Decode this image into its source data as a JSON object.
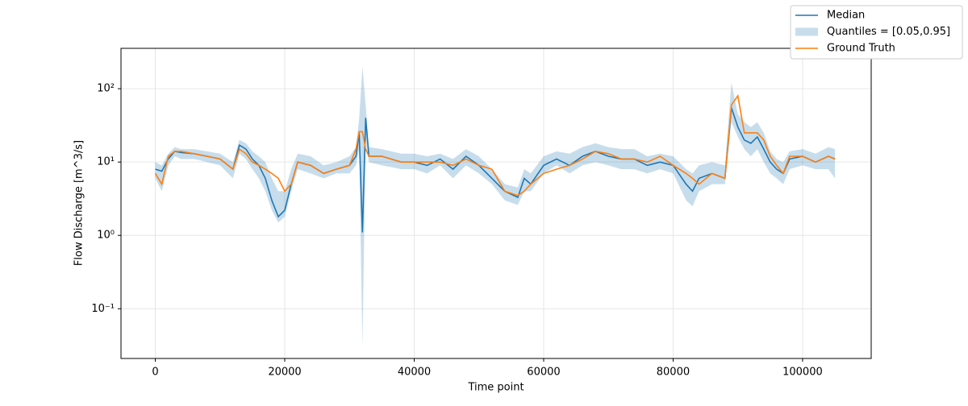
{
  "chart_data": {
    "type": "line",
    "xlabel": "Time point",
    "ylabel": "Flow Discharge [m^3/s]",
    "x": [
      0,
      1000,
      2000,
      3000,
      4000,
      6000,
      8000,
      10000,
      12000,
      13000,
      14000,
      15000,
      16000,
      17000,
      18000,
      19000,
      20000,
      21000,
      22000,
      24000,
      26000,
      28000,
      30000,
      31000,
      31500,
      32000,
      32500,
      33000,
      35000,
      38000,
      40000,
      42000,
      44000,
      46000,
      48000,
      50000,
      52000,
      54000,
      56000,
      57000,
      58000,
      60000,
      62000,
      64000,
      66000,
      68000,
      70000,
      72000,
      74000,
      76000,
      78000,
      80000,
      82000,
      83000,
      84000,
      86000,
      88000,
      89000,
      90000,
      91000,
      92000,
      93000,
      94000,
      95000,
      96000,
      97000,
      98000,
      100000,
      102000,
      104000,
      105000
    ],
    "series": [
      {
        "name": "Median",
        "color": "#1f77b4",
        "values": [
          8,
          7.5,
          11,
          14,
          13.5,
          13,
          12,
          11,
          8,
          17,
          15,
          11,
          9,
          6,
          3,
          1.8,
          2.2,
          5,
          10,
          9,
          7,
          8,
          9,
          12,
          25,
          1.1,
          40,
          12,
          12,
          10,
          10,
          9,
          11,
          8,
          12,
          9,
          6,
          4,
          3.3,
          6,
          5,
          9,
          11,
          9,
          12,
          14,
          12,
          11,
          11,
          9,
          10,
          9,
          5,
          4,
          6,
          7,
          6,
          55,
          30,
          20,
          18,
          22,
          15,
          10,
          8,
          7,
          11,
          12,
          10,
          12,
          11
        ]
      },
      {
        "name": "Quantiles = [0.05,0.95]",
        "color": "#1f77b4",
        "kind": "band",
        "lower": [
          6,
          4,
          9,
          12,
          11,
          11,
          10,
          9,
          6,
          13,
          11,
          8,
          6,
          4,
          2.2,
          1.5,
          1.8,
          4,
          8,
          7,
          6,
          7,
          7,
          9,
          15,
          0.03,
          20,
          10,
          9,
          8,
          8,
          7,
          9,
          6,
          9,
          7,
          5,
          3,
          2.6,
          4,
          4,
          7,
          9,
          7,
          9,
          10,
          9,
          8,
          8,
          7,
          8,
          7,
          3,
          2.5,
          4,
          5,
          5,
          35,
          22,
          15,
          12,
          15,
          10,
          7,
          6,
          5,
          8,
          9,
          8,
          8,
          6
        ],
        "upper": [
          10,
          9,
          13,
          16,
          15,
          15,
          14,
          13,
          10,
          20,
          18,
          14,
          12,
          10,
          6,
          4,
          4,
          8,
          13,
          12,
          9,
          10,
          12,
          16,
          40,
          200,
          60,
          16,
          15,
          13,
          13,
          12,
          13,
          11,
          15,
          12,
          8,
          5,
          4.5,
          8,
          7,
          12,
          14,
          13,
          16,
          18,
          16,
          15,
          15,
          12,
          13,
          12,
          8,
          7,
          9,
          10,
          9,
          120,
          45,
          35,
          30,
          35,
          25,
          14,
          11,
          10,
          14,
          15,
          13,
          16,
          15
        ]
      },
      {
        "name": "Ground Truth",
        "color": "#ff7f0e",
        "values": [
          7,
          5,
          12,
          14,
          14,
          13,
          12,
          11,
          8,
          15,
          13,
          10,
          9,
          8,
          7,
          6,
          4,
          5,
          10,
          9,
          7,
          8,
          9,
          15,
          26,
          26,
          15,
          12,
          12,
          10,
          10,
          10,
          10,
          9,
          11,
          9,
          8,
          4,
          3.5,
          4,
          5,
          7,
          8,
          9,
          11,
          14,
          13,
          11,
          11,
          10,
          12,
          9,
          7,
          6,
          5,
          7,
          6,
          60,
          80,
          25,
          25,
          25,
          20,
          12,
          9,
          7,
          12,
          12,
          10,
          12,
          11
        ]
      }
    ],
    "xlim": [
      -5300,
      110600
    ],
    "xticks": [
      0,
      20000,
      40000,
      60000,
      80000,
      100000
    ],
    "ylim": [
      0.021,
      355
    ],
    "yscale": "log",
    "yticks": [
      {
        "value": 0.1,
        "label": "10⁻¹"
      },
      {
        "value": 1,
        "label": "10⁰"
      },
      {
        "value": 10,
        "label": "10¹"
      },
      {
        "value": 100,
        "label": "10²"
      }
    ],
    "grid": true,
    "legend": "upper right"
  }
}
